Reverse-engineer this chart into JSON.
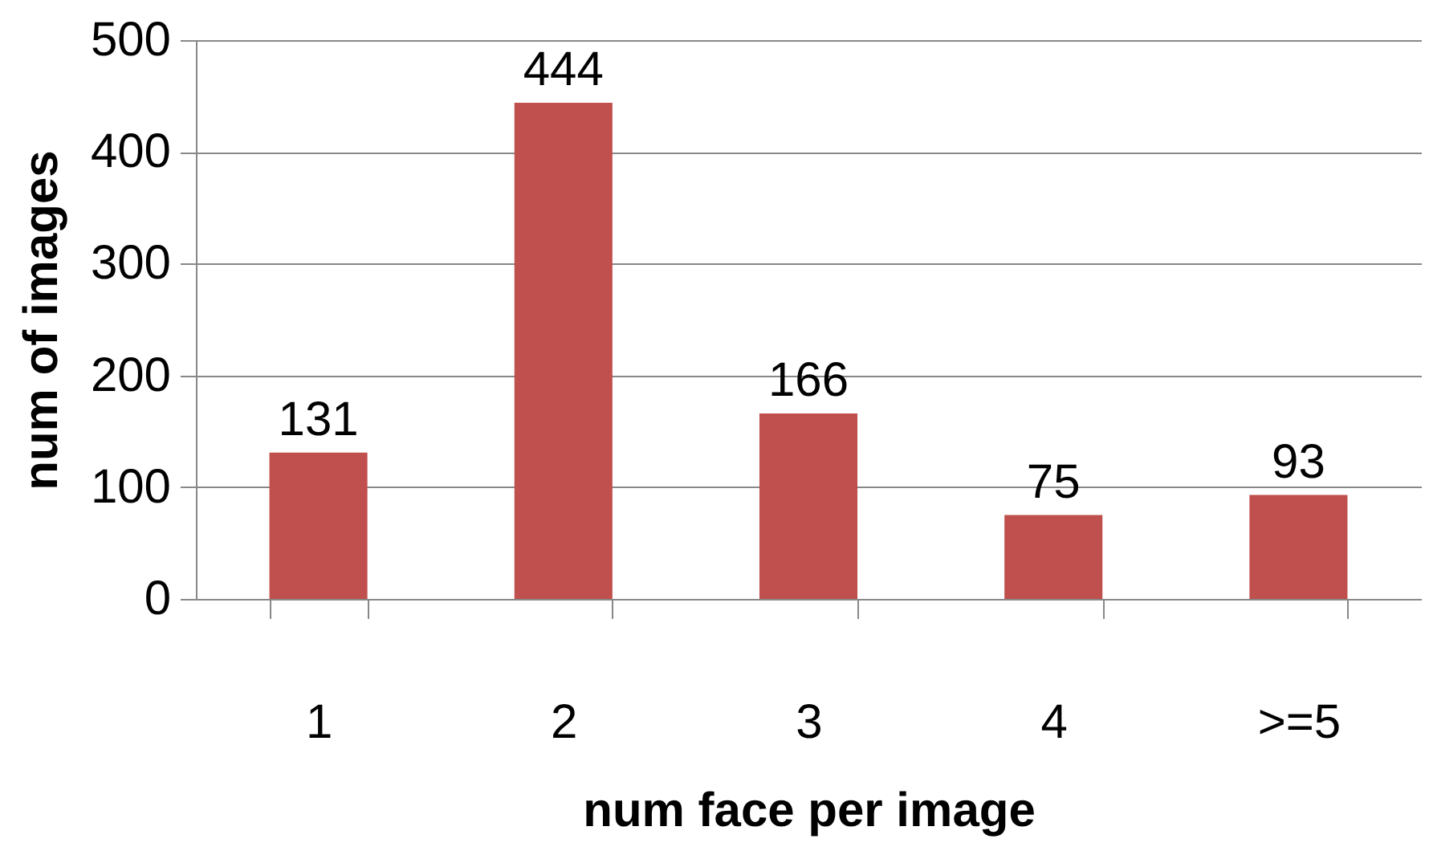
{
  "chart_data": {
    "type": "bar",
    "xlabel": "num face per image",
    "ylabel": "num of images",
    "categories": [
      "1",
      "2",
      "3",
      "4",
      ">=5"
    ],
    "values": [
      131,
      444,
      166,
      75,
      93
    ],
    "color": "#c0504d",
    "ylim": [
      0,
      500
    ],
    "yticks": [
      0,
      100,
      200,
      300,
      400,
      500
    ],
    "grid": "y",
    "data_labels": true
  }
}
